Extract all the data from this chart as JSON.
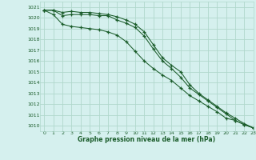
{
  "title": "Graphe pression niveau de la mer (hPa)",
  "bg_color": "#d5f0ee",
  "grid_color": "#b0d8cc",
  "line_color": "#1a5c2a",
  "xlim": [
    -0.5,
    23
  ],
  "ylim": [
    1009.5,
    1021.5
  ],
  "yticks": [
    1010,
    1011,
    1012,
    1013,
    1014,
    1015,
    1016,
    1017,
    1018,
    1019,
    1020,
    1021
  ],
  "xticks": [
    0,
    1,
    2,
    3,
    4,
    5,
    6,
    7,
    8,
    9,
    10,
    11,
    12,
    13,
    14,
    15,
    16,
    17,
    18,
    19,
    20,
    21,
    22,
    23
  ],
  "line1_x": [
    0,
    1,
    2,
    3,
    4,
    5,
    6,
    7,
    8,
    9,
    10,
    11,
    12,
    13,
    14,
    15,
    16,
    17,
    18,
    19,
    20,
    21,
    22,
    23
  ],
  "line1_y": [
    1020.7,
    1020.7,
    1020.2,
    1020.3,
    1020.3,
    1020.3,
    1020.2,
    1020.2,
    1019.8,
    1019.5,
    1019.1,
    1018.3,
    1017.1,
    1016.0,
    1015.3,
    1014.5,
    1013.5,
    1012.9,
    1012.3,
    1011.7,
    1011.1,
    1010.5,
    1010.1,
    1009.8
  ],
  "line2_x": [
    0,
    1,
    2,
    3,
    4,
    5,
    6,
    7,
    8,
    9,
    10,
    11,
    12,
    13,
    14,
    15,
    16,
    17,
    18,
    19,
    20,
    21,
    22,
    23
  ],
  "line2_y": [
    1020.7,
    1020.7,
    1020.5,
    1020.6,
    1020.5,
    1020.5,
    1020.4,
    1020.3,
    1020.1,
    1019.8,
    1019.4,
    1018.7,
    1017.5,
    1016.3,
    1015.6,
    1015.0,
    1013.8,
    1013.0,
    1012.4,
    1011.8,
    1011.2,
    1010.7,
    1010.2,
    1009.8
  ],
  "line3_x": [
    0,
    1,
    2,
    3,
    4,
    5,
    6,
    7,
    8,
    9,
    10,
    11,
    12,
    13,
    14,
    15,
    16,
    17,
    18,
    19,
    20,
    21,
    22,
    23
  ],
  "line3_y": [
    1020.7,
    1020.3,
    1019.4,
    1019.2,
    1019.1,
    1019.0,
    1018.9,
    1018.7,
    1018.4,
    1017.8,
    1016.9,
    1016.0,
    1015.3,
    1014.7,
    1014.2,
    1013.5,
    1012.8,
    1012.3,
    1011.8,
    1011.3,
    1010.7,
    1010.5,
    1010.1,
    1009.8
  ]
}
